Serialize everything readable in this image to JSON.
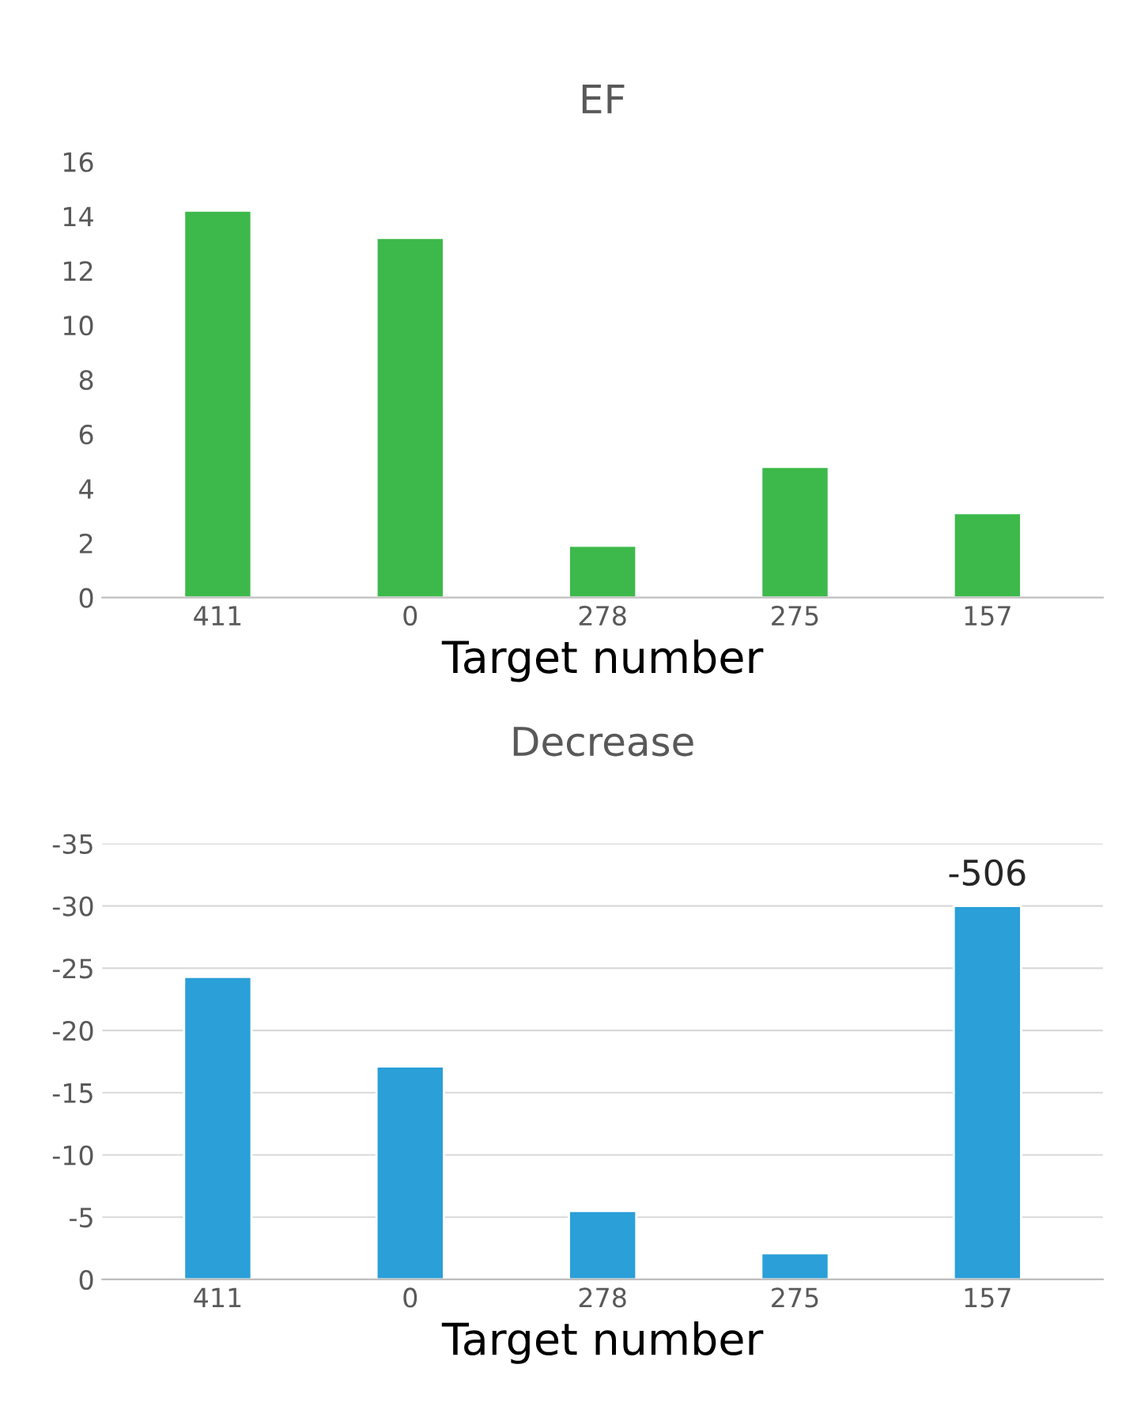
{
  "chart_data": [
    {
      "type": "bar",
      "title": "EF",
      "xlabel": "Target number",
      "categories": [
        "411",
        "0",
        "278",
        "275",
        "157"
      ],
      "values": [
        14.2,
        13.2,
        1.9,
        4.8,
        3.1
      ],
      "color": "#3cb94a",
      "ylim": [
        0,
        16
      ],
      "yticks": [
        0,
        2,
        4,
        6,
        8,
        10,
        12,
        14,
        16
      ],
      "grid": false
    },
    {
      "type": "bar",
      "title": "Decrease",
      "xlabel": "Target number",
      "categories": [
        "411",
        "0",
        "278",
        "275",
        "157"
      ],
      "values": [
        -24.3,
        -17.1,
        -5.5,
        -2.1,
        -30
      ],
      "color": "#2a9fd8",
      "ylim": [
        0,
        -35
      ],
      "yticks": [
        {
          "value": 0,
          "label": "0"
        },
        {
          "value": -5,
          "label": "-5"
        },
        {
          "value": -10,
          "label": "-10"
        },
        {
          "value": -15,
          "label": "-15"
        },
        {
          "value": -20,
          "label": "-20"
        },
        {
          "value": -25,
          "label": "-25"
        },
        {
          "value": -30,
          "label": "-30"
        },
        {
          "value": -35,
          "label": "-35"
        }
      ],
      "grid": "y",
      "annotations": [
        {
          "text": "-506",
          "x": "157",
          "y": -30
        }
      ]
    }
  ]
}
